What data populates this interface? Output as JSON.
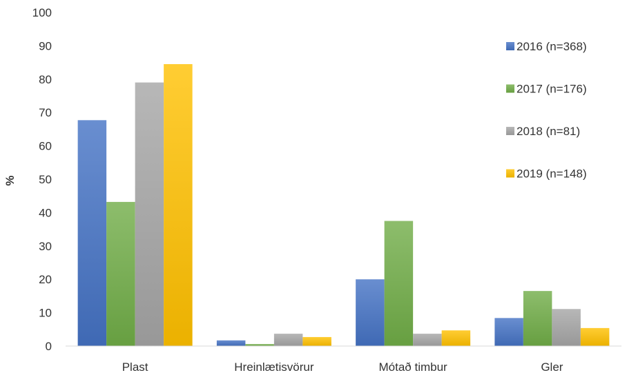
{
  "chart_data": {
    "type": "bar",
    "title": "",
    "xlabel": "",
    "ylabel": "%",
    "ylim": [
      0,
      100
    ],
    "yticks": [
      0,
      10,
      20,
      30,
      40,
      50,
      60,
      70,
      80,
      90,
      100
    ],
    "grid": false,
    "legend_position": "right",
    "categories": [
      "Plast",
      "Hreinlætisvörur",
      "Mótað timbur",
      "Gler"
    ],
    "series": [
      {
        "name": "2016 (n=368)",
        "color": "#4472C4",
        "values": [
          67.7,
          1.7,
          20.0,
          8.4
        ]
      },
      {
        "name": "2017 (n=176)",
        "color": "#70AD47",
        "values": [
          43.2,
          0.6,
          37.5,
          16.5
        ]
      },
      {
        "name": "2018 (n=81)",
        "color": "#A5A5A5",
        "values": [
          79.0,
          3.7,
          3.7,
          11.1
        ]
      },
      {
        "name": "2019 (n=148)",
        "color": "#FFC000",
        "values": [
          84.5,
          2.7,
          4.7,
          5.4
        ]
      }
    ]
  }
}
